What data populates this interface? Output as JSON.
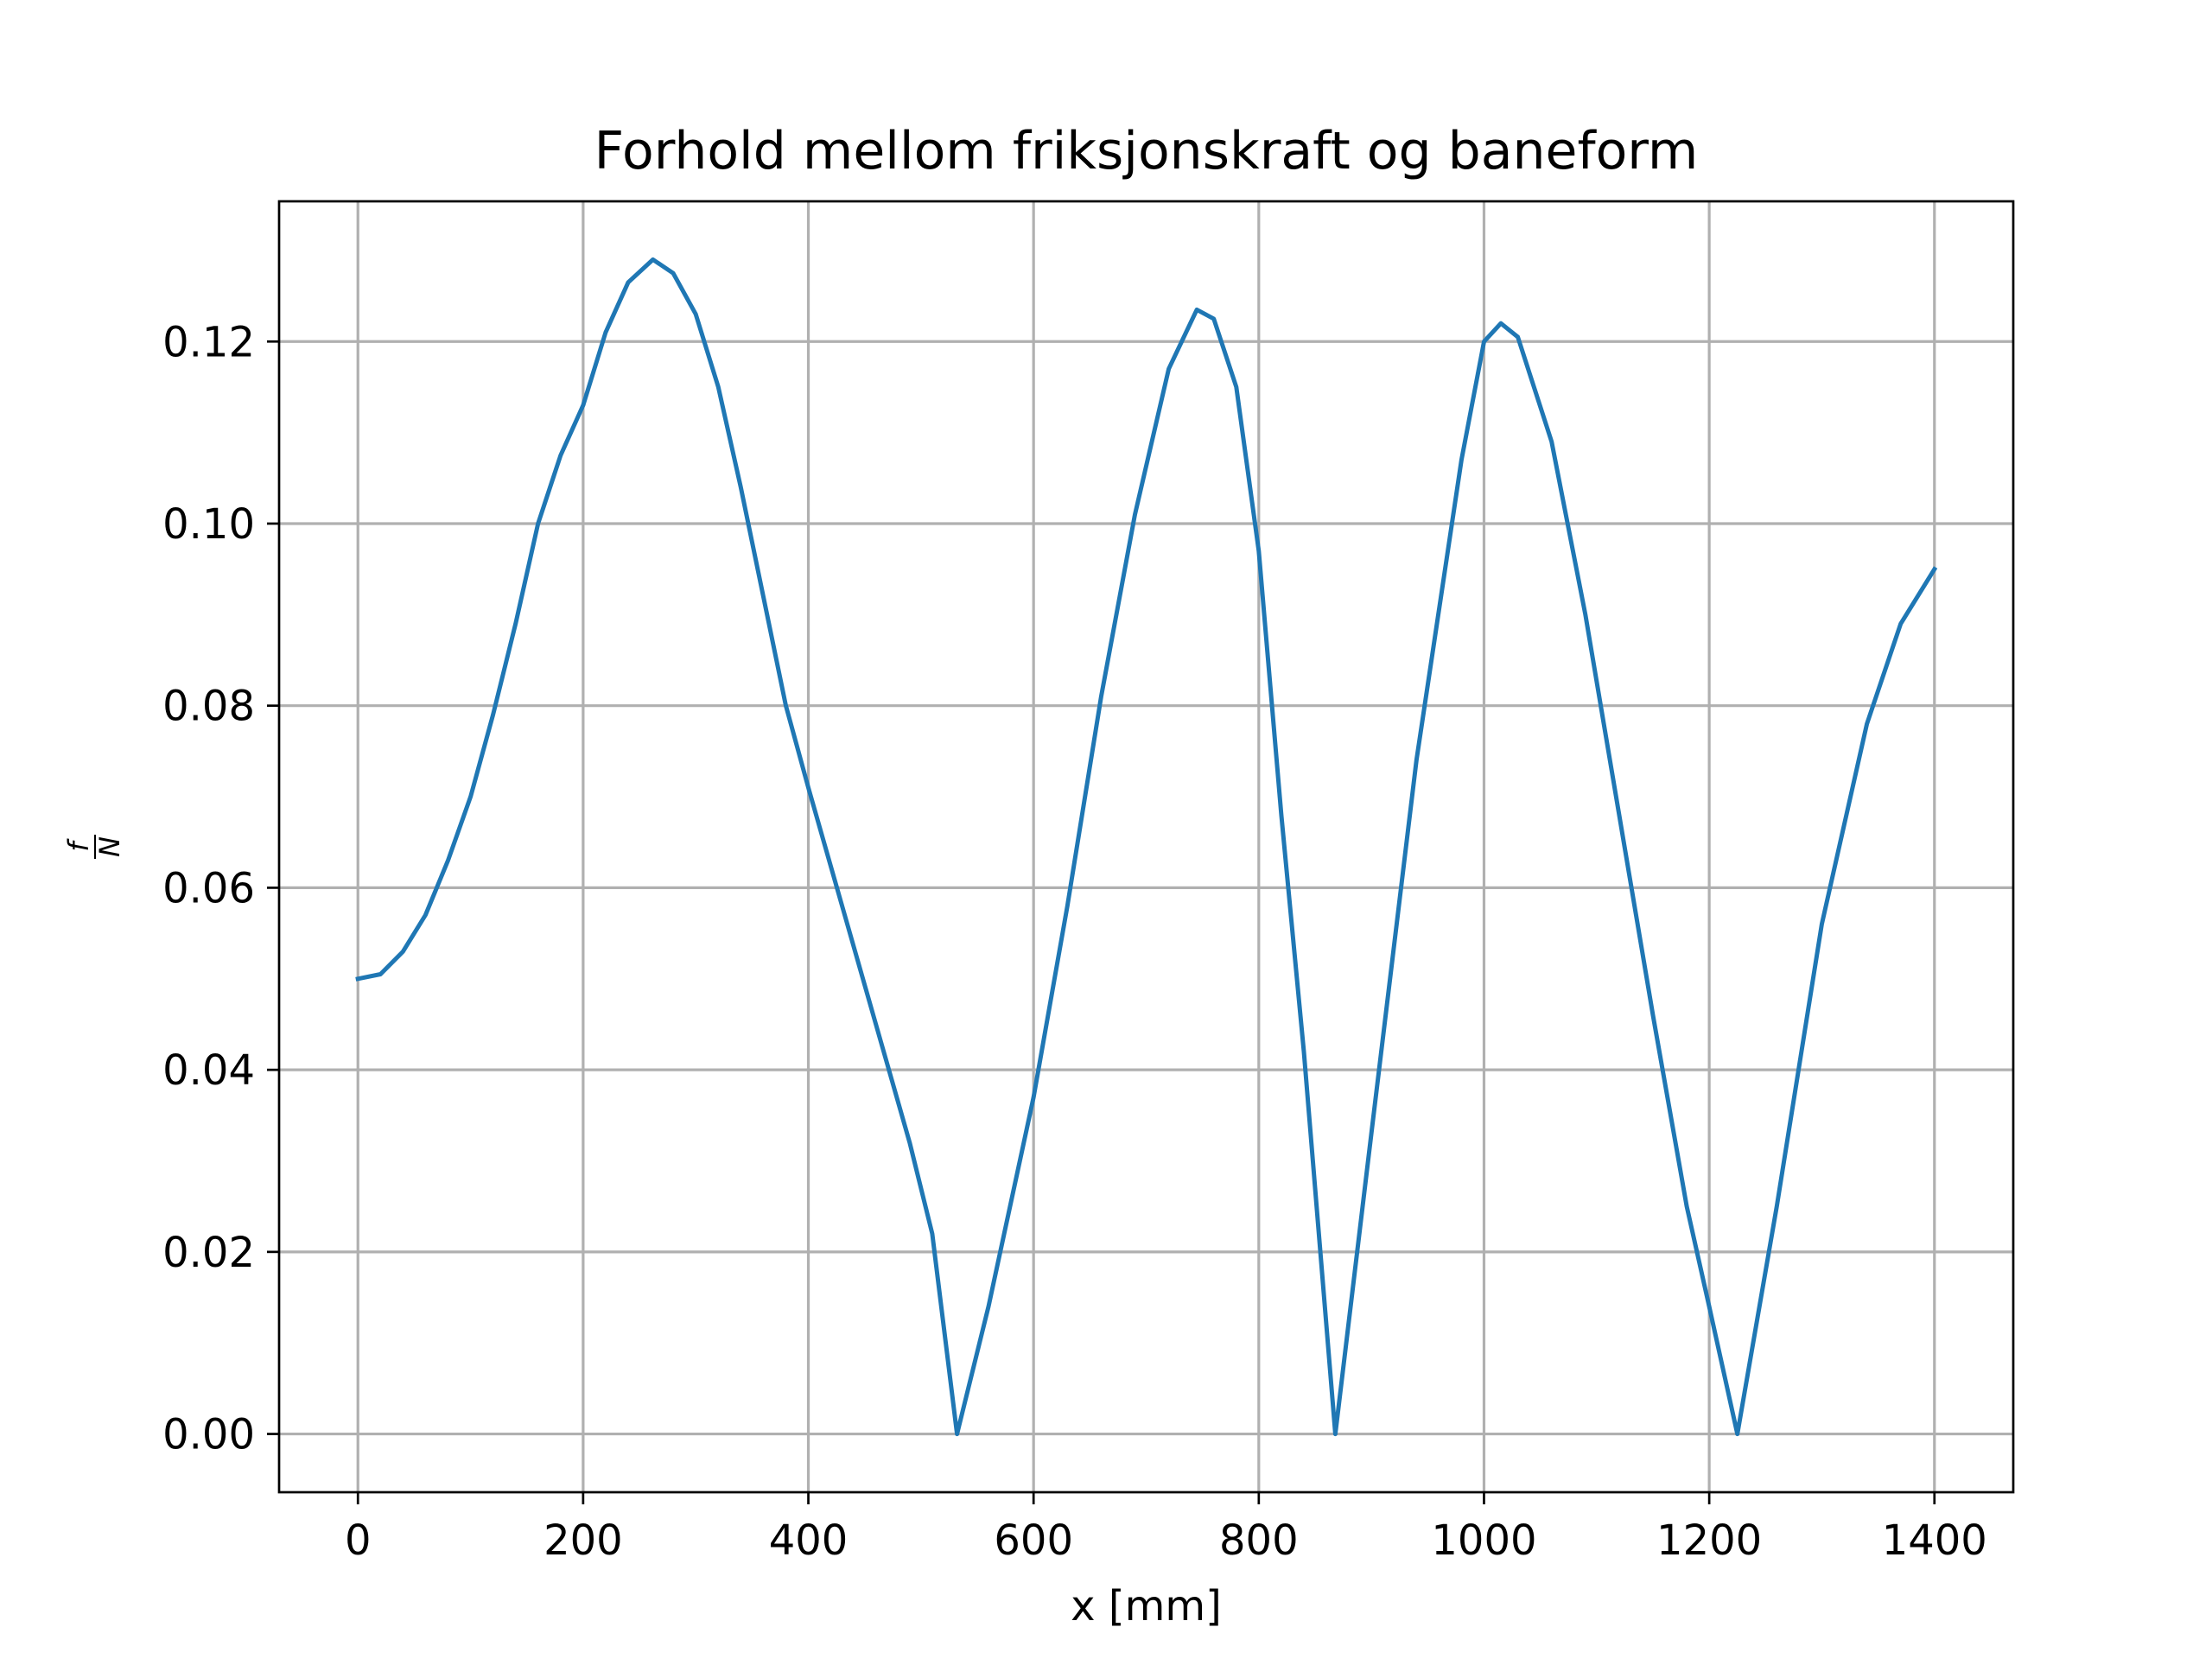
{
  "chart_data": {
    "type": "line",
    "title": "Forhold mellom friksjonskraft og baneform",
    "xlabel": "x [mm]",
    "ylabel": {
      "numerator": "f",
      "denominator": "N"
    },
    "xlim": [
      -70,
      1470
    ],
    "ylim": [
      -0.0064,
      0.1354
    ],
    "xticks": [
      0,
      200,
      400,
      600,
      800,
      1000,
      1200,
      1400
    ],
    "xtick_labels": [
      "0",
      "200",
      "400",
      "600",
      "800",
      "1000",
      "1200",
      "1400"
    ],
    "yticks": [
      0.0,
      0.02,
      0.04,
      0.06,
      0.08,
      0.1,
      0.12
    ],
    "ytick_labels": [
      "0.00",
      "0.02",
      "0.04",
      "0.06",
      "0.08",
      "0.10",
      "0.12"
    ],
    "grid": true,
    "series": [
      {
        "color": "#1f77b4",
        "x": [
          0,
          20,
          40,
          60,
          80,
          100,
          120,
          140,
          160,
          180,
          200,
          220,
          240,
          262,
          280,
          300,
          320,
          340,
          360,
          380,
          400,
          430,
          460,
          490,
          510,
          532,
          560,
          600,
          630,
          660,
          690,
          720,
          745,
          760,
          780,
          800,
          820,
          840,
          860,
          868,
          900,
          940,
          980,
          1000,
          1015,
          1030,
          1060,
          1090,
          1120,
          1150,
          1180,
          1200,
          1225,
          1260,
          1300,
          1340,
          1370,
          1400
        ],
        "y": [
          0.05,
          0.0505,
          0.053,
          0.057,
          0.063,
          0.07,
          0.079,
          0.089,
          0.1,
          0.1075,
          0.113,
          0.121,
          0.1265,
          0.129,
          0.1275,
          0.123,
          0.115,
          0.104,
          0.092,
          0.08,
          0.071,
          0.058,
          0.045,
          0.032,
          0.022,
          0.0,
          0.014,
          0.037,
          0.058,
          0.081,
          0.101,
          0.117,
          0.1235,
          0.1225,
          0.115,
          0.097,
          0.068,
          0.042,
          0.012,
          0.0,
          0.033,
          0.074,
          0.107,
          0.12,
          0.122,
          0.1205,
          0.109,
          0.09,
          0.068,
          0.046,
          0.025,
          0.014,
          0.0,
          0.025,
          0.056,
          0.078,
          0.089,
          0.095
        ]
      }
    ]
  }
}
